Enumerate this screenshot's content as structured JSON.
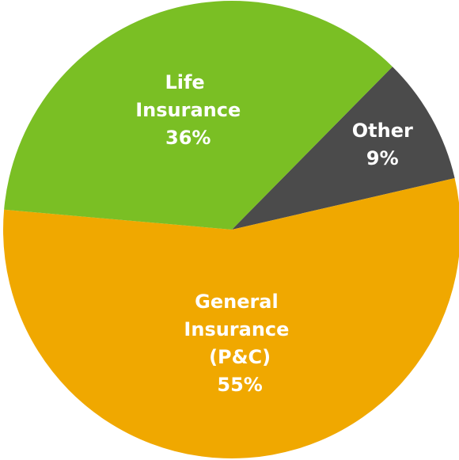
{
  "chart_data": {
    "type": "pie",
    "categories": [
      "Other",
      "General Insurance (P&C)",
      "Life Insurance"
    ],
    "values": [
      9,
      55,
      36
    ],
    "value_labels": [
      "9%",
      "55%",
      "36%"
    ],
    "colors": [
      "#4b4b4b",
      "#f0a800",
      "#7abf24"
    ]
  }
}
